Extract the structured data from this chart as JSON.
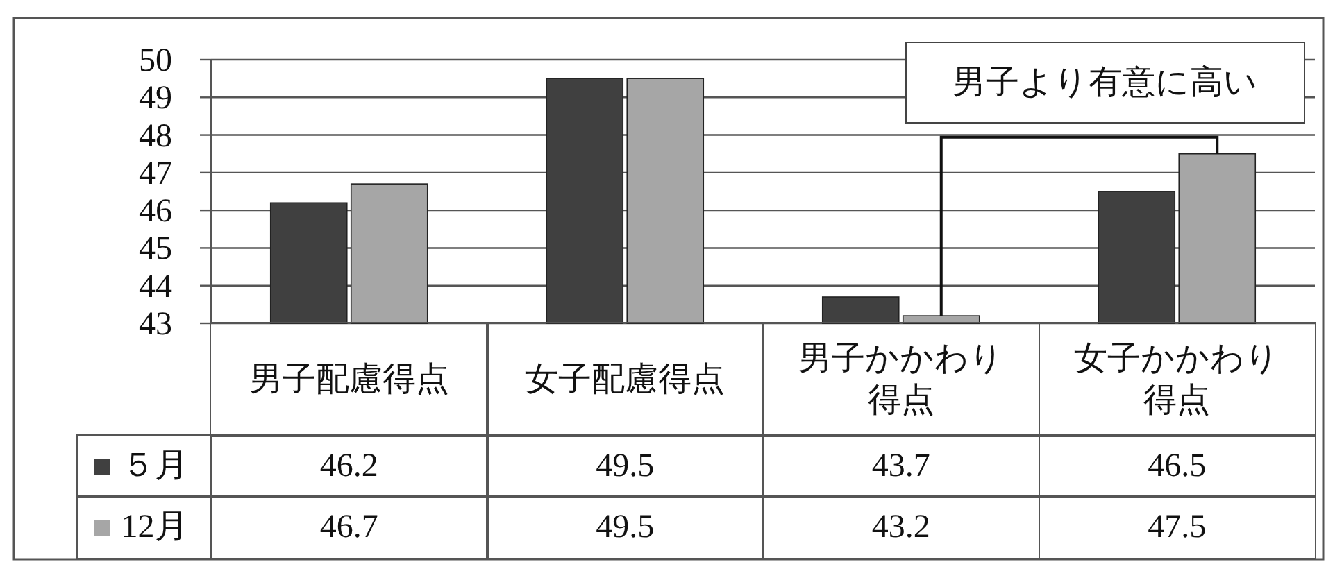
{
  "chart_data": {
    "type": "bar",
    "categories": [
      "男子配慮得点",
      "女子配慮得点",
      "男子かかわり得点",
      "女子かかわり得点"
    ],
    "series": [
      {
        "name": "５月",
        "color": "#404040",
        "values": [
          46.2,
          49.5,
          43.7,
          46.5
        ]
      },
      {
        "name": "12月",
        "color": "#a6a6a6",
        "values": [
          46.7,
          49.5,
          43.2,
          47.5
        ]
      }
    ],
    "ylim": [
      43,
      50
    ],
    "yticks": [
      43,
      44,
      45,
      46,
      47,
      48,
      49,
      50
    ],
    "grid": "y",
    "legend": "bottom",
    "data_labels": true,
    "annotations": [
      "男子より有意に高い"
    ]
  }
}
